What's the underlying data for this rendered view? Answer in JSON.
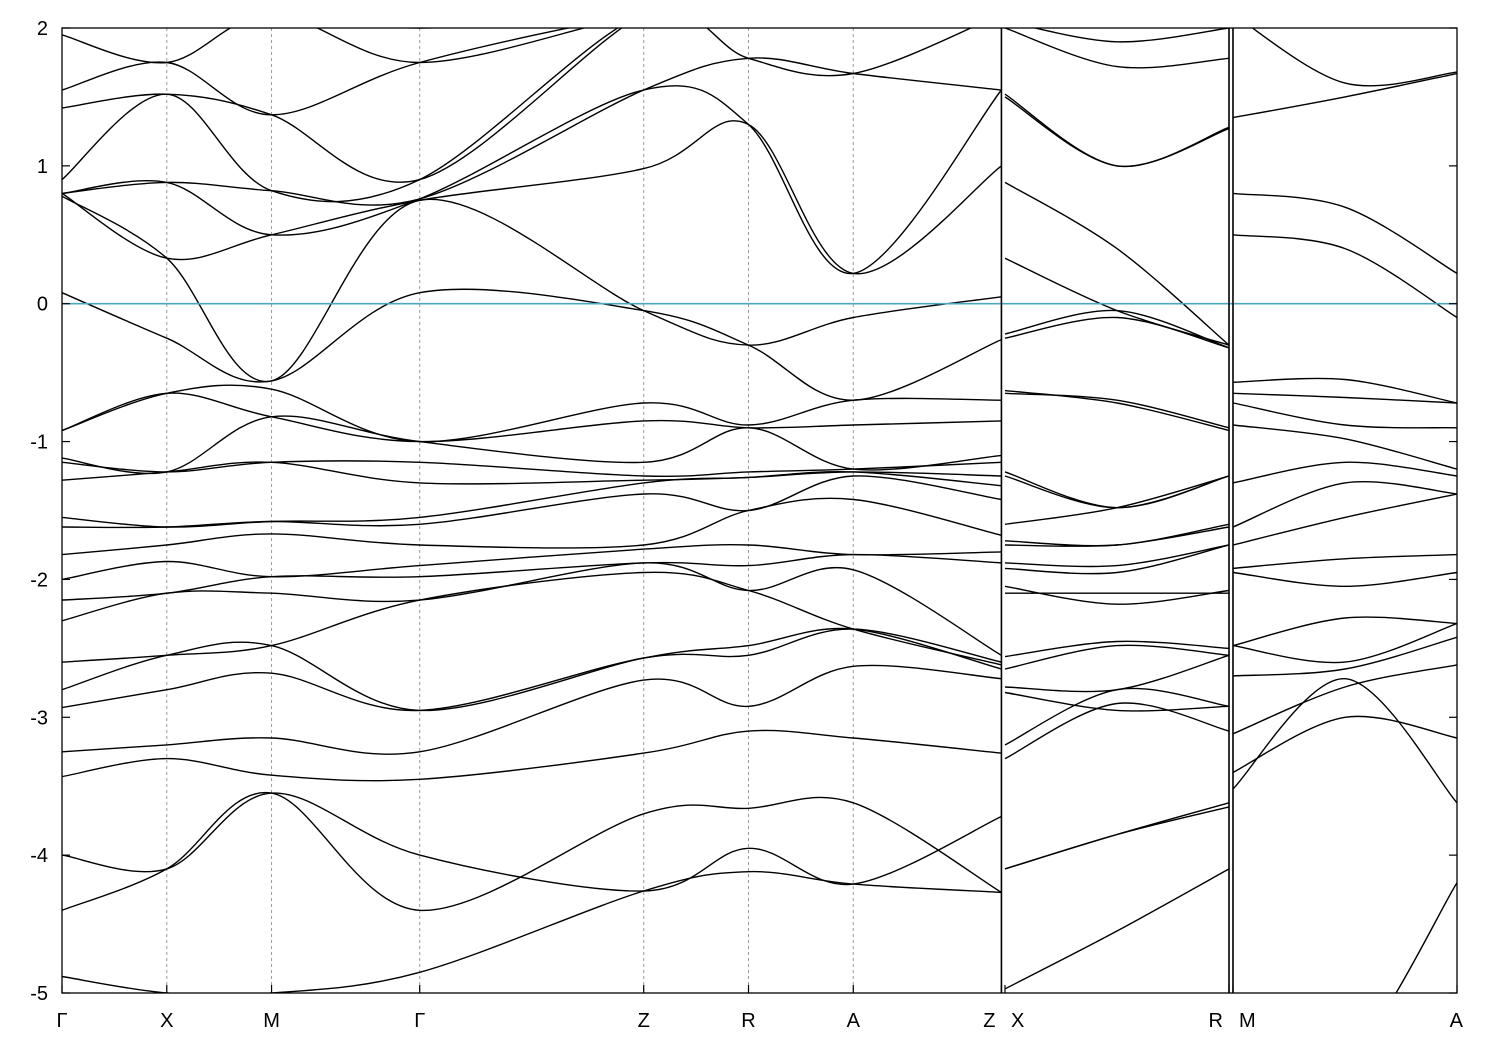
{
  "chart_data": {
    "type": "line",
    "title": "",
    "xlabel": "",
    "ylabel": "",
    "ylim": [
      -5,
      2
    ],
    "y_ticks": [
      "2",
      "1",
      "0",
      "-1",
      "-2",
      "-3",
      "-4",
      "-5"
    ],
    "k_points": [
      {
        "label": "Γ",
        "k": 0.0
      },
      {
        "label": "X",
        "k": 1.0
      },
      {
        "label": "M",
        "k": 2.0
      },
      {
        "label": "Γ",
        "k": 3.414
      },
      {
        "label": "Z",
        "k": 5.552
      },
      {
        "label": "R",
        "k": 6.552
      },
      {
        "label": "A",
        "k": 7.552
      },
      {
        "label": "Z",
        "k": 8.966
      },
      {
        "label": "X",
        "k": 9.0
      },
      {
        "label": "R",
        "k": 11.138
      },
      {
        "label": "M",
        "k": 11.176
      },
      {
        "label": "A",
        "k": 13.314
      }
    ],
    "segment_breaks": [
      8.966,
      11.138
    ],
    "fermi_level": 0,
    "colors": {
      "bands": "#000000",
      "fermi": "#4aa8c0",
      "grid": "#999999"
    },
    "segments": [
      {
        "name": "Γ-X-M-Γ-Z-R-A-Z",
        "k": [
          0.0,
          1.0,
          2.0,
          3.414,
          5.552,
          6.552,
          7.552,
          8.966
        ],
        "bands": [
          [
            -4.88,
            -5.0,
            -5.0,
            -4.85,
            -4.26,
            -4.12,
            -4.21,
            -4.27
          ],
          [
            -4.4,
            -4.1,
            -3.55,
            -4.4,
            -3.7,
            -3.66,
            -3.62,
            -4.27
          ],
          [
            -4.0,
            -4.1,
            -3.55,
            -4.0,
            -4.26,
            -3.95,
            -4.21,
            -3.72
          ],
          [
            -3.43,
            -3.3,
            -3.42,
            -3.45,
            -3.26,
            -3.1,
            -3.15,
            -3.26
          ],
          [
            -3.25,
            -3.2,
            -3.15,
            -3.25,
            -2.73,
            -2.92,
            -2.63,
            -2.72
          ],
          [
            -2.93,
            -2.8,
            -2.68,
            -2.95,
            -2.57,
            -2.55,
            -2.36,
            -2.6
          ],
          [
            -2.8,
            -2.55,
            -2.48,
            -2.95,
            -2.57,
            -2.48,
            -2.36,
            -2.65
          ],
          [
            -2.6,
            -2.55,
            -2.48,
            -2.15,
            -1.95,
            -2.08,
            -2.36,
            -2.62
          ],
          [
            -2.3,
            -2.1,
            -2.1,
            -2.15,
            -1.88,
            -2.08,
            -1.93,
            -2.55
          ],
          [
            -2.15,
            -2.1,
            -1.98,
            -1.98,
            -1.88,
            -1.9,
            -1.82,
            -1.88
          ],
          [
            -2.0,
            -1.87,
            -1.98,
            -1.9,
            -1.78,
            -1.75,
            -1.82,
            -1.8
          ],
          [
            -1.82,
            -1.75,
            -1.67,
            -1.75,
            -1.75,
            -1.5,
            -1.42,
            -1.68
          ],
          [
            -1.62,
            -1.62,
            -1.58,
            -1.6,
            -1.38,
            -1.5,
            -1.25,
            -1.42
          ],
          [
            -1.55,
            -1.62,
            -1.58,
            -1.55,
            -1.3,
            -1.26,
            -1.22,
            -1.32
          ],
          [
            -1.28,
            -1.22,
            -1.15,
            -1.3,
            -1.28,
            -1.26,
            -1.22,
            -1.25
          ],
          [
            -1.15,
            -1.22,
            -1.15,
            -1.15,
            -1.25,
            -1.22,
            -1.2,
            -1.15
          ],
          [
            -1.12,
            -1.22,
            -0.82,
            -1.0,
            -1.15,
            -0.9,
            -1.2,
            -1.1
          ],
          [
            -0.92,
            -0.65,
            -0.82,
            -1.0,
            -0.85,
            -0.9,
            -0.88,
            -0.85
          ],
          [
            -0.92,
            -0.65,
            -0.62,
            -1.0,
            -0.72,
            -0.88,
            -0.7,
            -0.7
          ],
          [
            0.08,
            -0.25,
            -0.56,
            0.08,
            -0.05,
            -0.3,
            -0.7,
            -0.26
          ],
          [
            0.78,
            0.33,
            -0.56,
            0.75,
            -0.05,
            -0.3,
            -0.1,
            0.05
          ],
          [
            0.8,
            0.33,
            0.5,
            0.75,
            0.98,
            1.3,
            0.22,
            1.0
          ],
          [
            0.8,
            0.88,
            0.5,
            0.76,
            1.55,
            1.3,
            0.22,
            1.55
          ],
          [
            0.8,
            0.88,
            0.82,
            0.76,
            1.55,
            1.78,
            1.67,
            1.55
          ],
          [
            0.9,
            1.52,
            0.82,
            0.9,
            2.1,
            1.78,
            1.67,
            2.1
          ],
          [
            1.42,
            1.52,
            1.37,
            0.9,
            2.1,
            2.1,
            2.1,
            2.1
          ],
          [
            1.55,
            1.75,
            1.37,
            1.75,
            2.1,
            2.1,
            2.1,
            2.1
          ],
          [
            1.95,
            1.75,
            2.1,
            1.75,
            2.1,
            2.1,
            2.1,
            2.1
          ],
          [
            2.0,
            2.1,
            2.1,
            2.0,
            2.1,
            2.1,
            2.1,
            2.1
          ]
        ]
      },
      {
        "name": "X-R",
        "k": [
          9.0,
          10.069,
          11.138
        ],
        "bands": [
          [
            -4.97,
            -4.55,
            -4.1
          ],
          [
            -4.1,
            -3.85,
            -3.62
          ],
          [
            -4.1,
            -3.85,
            -3.65
          ],
          [
            -3.3,
            -2.9,
            -3.1
          ],
          [
            -3.2,
            -2.8,
            -2.92
          ],
          [
            -2.82,
            -2.95,
            -2.92
          ],
          [
            -2.78,
            -2.8,
            -2.55
          ],
          [
            -2.65,
            -2.48,
            -2.55
          ],
          [
            -2.56,
            -2.45,
            -2.5
          ],
          [
            -2.1,
            -2.1,
            -2.1
          ],
          [
            -2.05,
            -2.18,
            -2.08
          ],
          [
            -1.92,
            -1.95,
            -1.75
          ],
          [
            -1.88,
            -1.9,
            -1.75
          ],
          [
            -1.75,
            -1.75,
            -1.62
          ],
          [
            -1.72,
            -1.75,
            -1.6
          ],
          [
            -1.6,
            -1.48,
            -1.25
          ],
          [
            -1.25,
            -1.48,
            -1.25
          ],
          [
            -1.22,
            -1.48,
            -1.25
          ],
          [
            -0.65,
            -0.7,
            -0.9
          ],
          [
            -0.63,
            -0.72,
            -0.92
          ],
          [
            -0.25,
            -0.1,
            -0.32
          ],
          [
            -0.22,
            -0.05,
            -0.32
          ],
          [
            0.33,
            -0.05,
            -0.3
          ],
          [
            0.88,
            0.4,
            -0.3
          ],
          [
            1.52,
            1.0,
            1.28
          ],
          [
            1.5,
            1.0,
            1.27
          ],
          [
            2.0,
            1.72,
            1.78
          ],
          [
            2.05,
            1.9,
            2.0
          ]
        ]
      },
      {
        "name": "M-A",
        "k": [
          11.176,
          12.245,
          13.314
        ],
        "bands": [
          [
            -5.5,
            -5.5,
            -4.2
          ],
          [
            -3.52,
            -2.72,
            -3.62
          ],
          [
            -3.4,
            -3.0,
            -3.15
          ],
          [
            -3.12,
            -2.78,
            -2.62
          ],
          [
            -2.7,
            -2.65,
            -2.42
          ],
          [
            -2.48,
            -2.6,
            -2.32
          ],
          [
            -2.48,
            -2.28,
            -2.32
          ],
          [
            -1.95,
            -2.05,
            -1.95
          ],
          [
            -1.92,
            -1.85,
            -1.82
          ],
          [
            -1.75,
            -1.55,
            -1.38
          ],
          [
            -1.62,
            -1.3,
            -1.38
          ],
          [
            -1.3,
            -1.15,
            -1.25
          ],
          [
            -0.88,
            -0.98,
            -1.2
          ],
          [
            -0.72,
            -0.88,
            -0.9
          ],
          [
            -0.65,
            -0.68,
            -0.72
          ],
          [
            -0.57,
            -0.55,
            -0.72
          ],
          [
            0.5,
            0.4,
            -0.1
          ],
          [
            0.8,
            0.7,
            0.22
          ],
          [
            1.35,
            1.5,
            1.67
          ],
          [
            2.1,
            1.6,
            1.68
          ],
          [
            2.1,
            2.1,
            2.1
          ]
        ]
      }
    ]
  }
}
